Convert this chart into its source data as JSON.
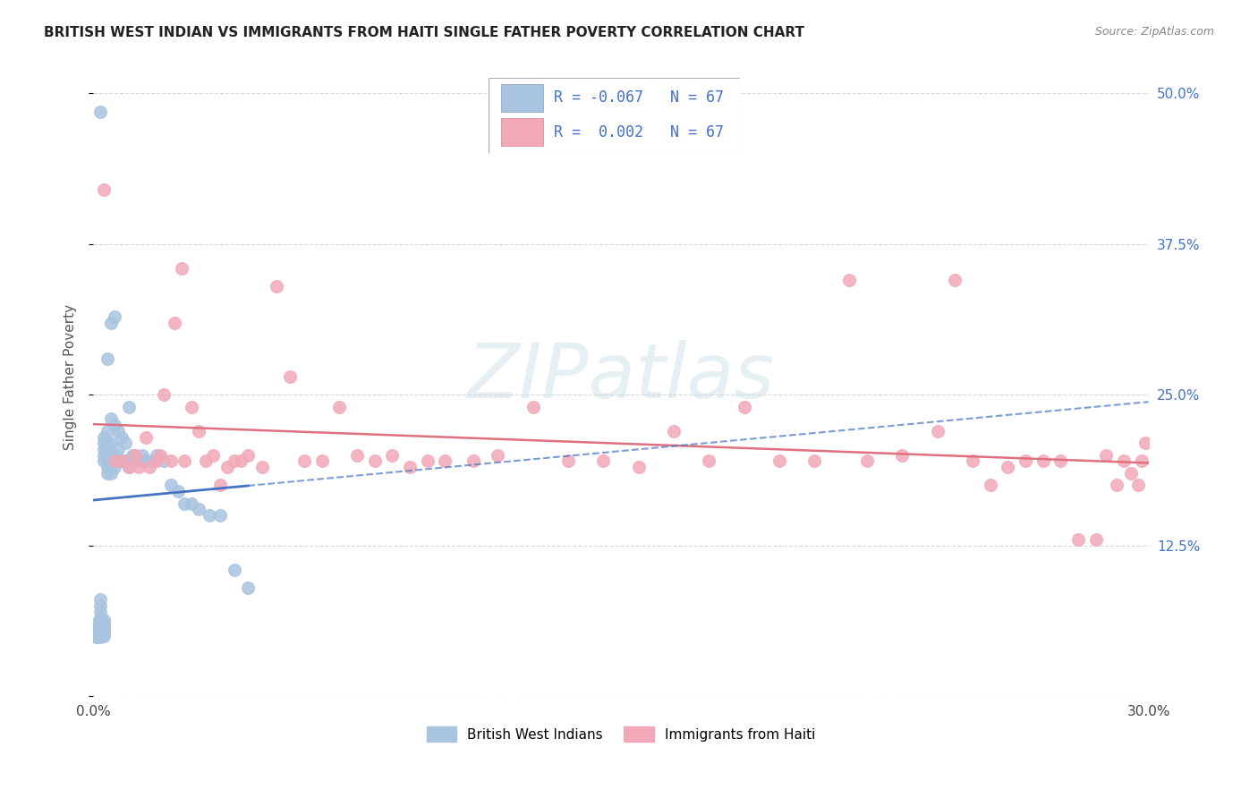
{
  "title": "BRITISH WEST INDIAN VS IMMIGRANTS FROM HAITI SINGLE FATHER POVERTY CORRELATION CHART",
  "source": "Source: ZipAtlas.com",
  "ylabel": "Single Father Poverty",
  "ytick_values": [
    0.0,
    0.125,
    0.25,
    0.375,
    0.5
  ],
  "ytick_labels_right": [
    "",
    "12.5%",
    "25.0%",
    "37.5%",
    "50.0%"
  ],
  "xtick_values": [
    0.0,
    0.05,
    0.1,
    0.15,
    0.2,
    0.25,
    0.3
  ],
  "xtick_labels": [
    "0.0%",
    "",
    "",
    "",
    "",
    "",
    "30.0%"
  ],
  "xlim": [
    0.0,
    0.3
  ],
  "ylim": [
    0.0,
    0.53
  ],
  "legend_r_blue": "-0.067",
  "legend_r_pink": " 0.002",
  "legend_n": "67",
  "blue_dot_color": "#a8c4e0",
  "pink_dot_color": "#f2a8b8",
  "blue_line_color": "#4472c4",
  "pink_line_color": "#e07080",
  "legend_text_color": "#4472c4",
  "watermark_text": "ZIPatlas",
  "watermark_color": "#c8dce8",
  "watermark_alpha": 0.45,
  "grid_color": "#d8d8d8",
  "title_color": "#222222",
  "source_color": "#888888",
  "ylabel_color": "#555555",
  "right_tick_color": "#4472c4",
  "bottom_legend_labels": [
    "British West Indians",
    "Immigrants from Haiti"
  ],
  "blue_scatter_x": [
    0.001,
    0.001,
    0.001,
    0.001,
    0.002,
    0.002,
    0.002,
    0.002,
    0.002,
    0.002,
    0.002,
    0.002,
    0.002,
    0.003,
    0.003,
    0.003,
    0.003,
    0.003,
    0.003,
    0.003,
    0.003,
    0.003,
    0.003,
    0.003,
    0.004,
    0.004,
    0.004,
    0.004,
    0.004,
    0.004,
    0.004,
    0.005,
    0.005,
    0.005,
    0.005,
    0.005,
    0.005,
    0.006,
    0.006,
    0.006,
    0.006,
    0.007,
    0.007,
    0.007,
    0.008,
    0.008,
    0.009,
    0.009,
    0.01,
    0.01,
    0.011,
    0.012,
    0.013,
    0.014,
    0.015,
    0.017,
    0.018,
    0.02,
    0.022,
    0.024,
    0.026,
    0.028,
    0.03,
    0.033,
    0.036,
    0.04,
    0.044
  ],
  "blue_scatter_y": [
    0.049,
    0.049,
    0.055,
    0.06,
    0.049,
    0.05,
    0.055,
    0.06,
    0.065,
    0.07,
    0.075,
    0.08,
    0.485,
    0.05,
    0.052,
    0.055,
    0.058,
    0.06,
    0.063,
    0.195,
    0.2,
    0.205,
    0.21,
    0.215,
    0.185,
    0.19,
    0.195,
    0.2,
    0.21,
    0.22,
    0.28,
    0.185,
    0.195,
    0.2,
    0.21,
    0.23,
    0.31,
    0.19,
    0.2,
    0.225,
    0.315,
    0.195,
    0.205,
    0.22,
    0.195,
    0.215,
    0.195,
    0.21,
    0.19,
    0.24,
    0.2,
    0.2,
    0.195,
    0.2,
    0.195,
    0.195,
    0.2,
    0.195,
    0.175,
    0.17,
    0.16,
    0.16,
    0.155,
    0.15,
    0.15,
    0.105,
    0.09
  ],
  "pink_scatter_x": [
    0.003,
    0.006,
    0.008,
    0.01,
    0.012,
    0.013,
    0.015,
    0.016,
    0.018,
    0.019,
    0.02,
    0.022,
    0.023,
    0.025,
    0.026,
    0.028,
    0.03,
    0.032,
    0.034,
    0.036,
    0.038,
    0.04,
    0.042,
    0.044,
    0.048,
    0.052,
    0.056,
    0.06,
    0.065,
    0.07,
    0.075,
    0.08,
    0.085,
    0.09,
    0.095,
    0.1,
    0.108,
    0.115,
    0.125,
    0.135,
    0.145,
    0.155,
    0.165,
    0.175,
    0.185,
    0.195,
    0.205,
    0.215,
    0.22,
    0.23,
    0.24,
    0.245,
    0.25,
    0.255,
    0.26,
    0.265,
    0.27,
    0.275,
    0.28,
    0.285,
    0.288,
    0.291,
    0.293,
    0.295,
    0.297,
    0.298,
    0.299
  ],
  "pink_scatter_y": [
    0.42,
    0.195,
    0.195,
    0.19,
    0.2,
    0.19,
    0.215,
    0.19,
    0.195,
    0.2,
    0.25,
    0.195,
    0.31,
    0.355,
    0.195,
    0.24,
    0.22,
    0.195,
    0.2,
    0.175,
    0.19,
    0.195,
    0.195,
    0.2,
    0.19,
    0.34,
    0.265,
    0.195,
    0.195,
    0.24,
    0.2,
    0.195,
    0.2,
    0.19,
    0.195,
    0.195,
    0.195,
    0.2,
    0.24,
    0.195,
    0.195,
    0.19,
    0.22,
    0.195,
    0.24,
    0.195,
    0.195,
    0.345,
    0.195,
    0.2,
    0.22,
    0.345,
    0.195,
    0.175,
    0.19,
    0.195,
    0.195,
    0.195,
    0.13,
    0.13,
    0.2,
    0.175,
    0.195,
    0.185,
    0.175,
    0.195,
    0.21
  ]
}
